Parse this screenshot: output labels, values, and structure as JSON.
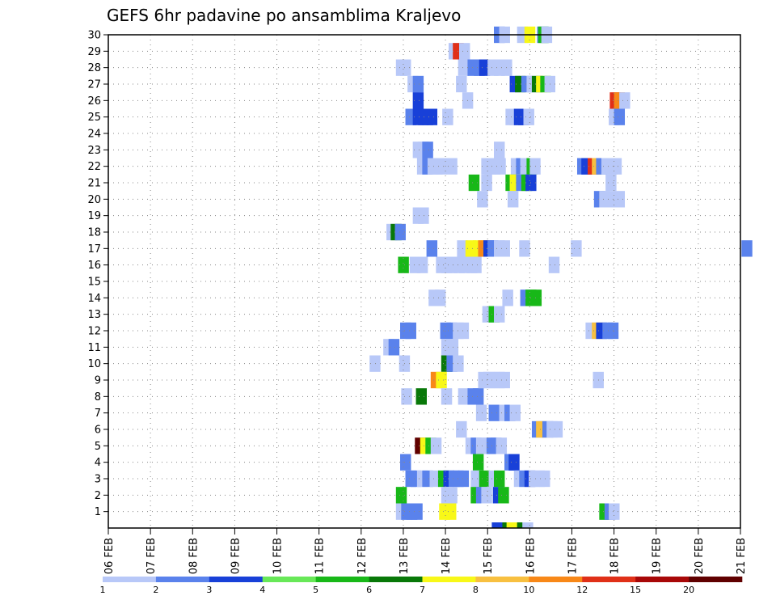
{
  "chart_data": {
    "type": "heatmap",
    "title": "GEFS 6hr padavine po ansamblima Kraljevo",
    "xlabel": "",
    "ylabel": "",
    "x_ticks": [
      "06 FEB",
      "07 FEB",
      "08 FEB",
      "09 FEB",
      "10 FEB",
      "11 FEB",
      "12 FEB",
      "13 FEB",
      "14 FEB",
      "15 FEB",
      "16 FEB",
      "17 FEB",
      "18 FEB",
      "19 FEB",
      "20 FEB",
      "21 FEB"
    ],
    "xlim": [
      "06 FEB 00Z",
      "21 FEB 00Z"
    ],
    "x_step_hours": 6,
    "y_ticks": [
      1,
      2,
      3,
      4,
      5,
      6,
      7,
      8,
      9,
      10,
      11,
      12,
      13,
      14,
      15,
      16,
      17,
      18,
      19,
      20,
      21,
      22,
      23,
      24,
      25,
      26,
      27,
      28,
      29,
      30
    ],
    "ylim": [
      0,
      30
    ],
    "grid": true,
    "colorbar": {
      "labels": [
        "1",
        "2",
        "3",
        "4",
        "5",
        "6",
        "7",
        "8",
        "10",
        "12",
        "15",
        "20"
      ],
      "colors": [
        "#b8c8f8",
        "#5a82ec",
        "#1840d8",
        "#68e858",
        "#18b818",
        "#087808",
        "#f8f818",
        "#f8c040",
        "#f88818",
        "#e03018",
        "#a80808",
        "#600000"
      ]
    },
    "cells": [
      {
        "m": 30,
        "x": [
          [
            36.6,
            1
          ],
          [
            37.1,
            0
          ],
          [
            38.8,
            0
          ],
          [
            39.5,
            6
          ],
          [
            40.7,
            1
          ],
          [
            40.8,
            4
          ],
          [
            41.1,
            0
          ]
        ]
      },
      {
        "m": 29,
        "x": [
          [
            32.3,
            0
          ],
          [
            32.7,
            9
          ],
          [
            33.3,
            0
          ]
        ]
      },
      {
        "m": 28,
        "x": [
          [
            27.3,
            0
          ],
          [
            27.7,
            0
          ],
          [
            33.2,
            0
          ],
          [
            34.1,
            1
          ],
          [
            34.7,
            1
          ],
          [
            35.2,
            2
          ],
          [
            36.0,
            0
          ],
          [
            36.6,
            0
          ],
          [
            37.3,
            0
          ]
        ]
      },
      {
        "m": 27,
        "x": [
          [
            28.4,
            0
          ],
          [
            28.9,
            1
          ],
          [
            33.0,
            0
          ],
          [
            38.1,
            2
          ],
          [
            38.6,
            5
          ],
          [
            39.2,
            1
          ],
          [
            39.7,
            0
          ],
          [
            40.2,
            5
          ],
          [
            40.6,
            6
          ],
          [
            41.0,
            4
          ],
          [
            41.4,
            0
          ]
        ]
      },
      {
        "m": 26,
        "x": [
          [
            28.9,
            2
          ],
          [
            33.6,
            0
          ],
          [
            47.6,
            9
          ],
          [
            48.0,
            8
          ],
          [
            48.5,
            0
          ]
        ]
      },
      {
        "m": 25,
        "x": [
          [
            28.2,
            1
          ],
          [
            28.9,
            2
          ],
          [
            29.4,
            2
          ],
          [
            29.8,
            2
          ],
          [
            30.2,
            2
          ],
          [
            31.7,
            0
          ],
          [
            37.7,
            0
          ],
          [
            38.1,
            0
          ],
          [
            38.5,
            2
          ],
          [
            38.9,
            2
          ],
          [
            39.4,
            0
          ],
          [
            47.5,
            0
          ],
          [
            48.0,
            1
          ]
        ]
      },
      {
        "m": 23,
        "x": [
          [
            28.9,
            0
          ],
          [
            29.4,
            0
          ],
          [
            29.8,
            1
          ],
          [
            36.6,
            0
          ]
        ]
      },
      {
        "m": 22,
        "x": [
          [
            29.3,
            0
          ],
          [
            29.8,
            1
          ],
          [
            30.3,
            0
          ],
          [
            30.7,
            0
          ],
          [
            31.1,
            0
          ],
          [
            32.1,
            0
          ],
          [
            35.4,
            0
          ],
          [
            35.7,
            0
          ],
          [
            36.2,
            0
          ],
          [
            36.7,
            0
          ],
          [
            38.2,
            0
          ],
          [
            38.7,
            1
          ],
          [
            39.1,
            0
          ],
          [
            39.7,
            4
          ],
          [
            40.0,
            0
          ],
          [
            44.5,
            1
          ],
          [
            44.9,
            2
          ],
          [
            45.5,
            9
          ],
          [
            45.9,
            7
          ],
          [
            46.3,
            1
          ],
          [
            46.8,
            0
          ],
          [
            47.3,
            0
          ],
          [
            47.7,
            0
          ]
        ]
      },
      {
        "m": 21,
        "x": [
          [
            34.2,
            4
          ],
          [
            35.4,
            0
          ],
          [
            37.7,
            4
          ],
          [
            38.1,
            6
          ],
          [
            38.7,
            1
          ],
          [
            39.2,
            4
          ],
          [
            39.6,
            2
          ],
          [
            47.2,
            0
          ]
        ]
      },
      {
        "m": 20,
        "x": [
          [
            35.0,
            0
          ],
          [
            37.9,
            0
          ],
          [
            46.1,
            1
          ],
          [
            46.6,
            0
          ],
          [
            47.1,
            0
          ],
          [
            48.0,
            0
          ]
        ]
      },
      {
        "m": 19,
        "x": [
          [
            28.9,
            0
          ],
          [
            29.4,
            0
          ]
        ]
      },
      {
        "m": 18,
        "x": [
          [
            26.4,
            0
          ],
          [
            26.8,
            5
          ],
          [
            27.2,
            1
          ]
        ]
      },
      {
        "m": 17,
        "x": [
          [
            30.2,
            1
          ],
          [
            33.1,
            0
          ],
          [
            33.9,
            6
          ],
          [
            34.6,
            6
          ],
          [
            35.1,
            8
          ],
          [
            35.6,
            2
          ],
          [
            36.0,
            1
          ],
          [
            36.6,
            0
          ],
          [
            37.1,
            0
          ],
          [
            39.0,
            0
          ],
          [
            43.9,
            0
          ],
          [
            60.1,
            1
          ]
        ]
      },
      {
        "m": 16,
        "x": [
          [
            27.5,
            4
          ],
          [
            28.6,
            0
          ],
          [
            29.3,
            0
          ],
          [
            31.1,
            0
          ],
          [
            31.6,
            0
          ],
          [
            32.1,
            0
          ],
          [
            32.8,
            0
          ],
          [
            33.3,
            0
          ],
          [
            34.0,
            0
          ],
          [
            34.4,
            0
          ],
          [
            41.8,
            0
          ]
        ]
      },
      {
        "m": 14,
        "x": [
          [
            30.4,
            0
          ],
          [
            31.0,
            0
          ],
          [
            37.4,
            0
          ],
          [
            39.1,
            1
          ],
          [
            39.6,
            4
          ],
          [
            40.1,
            4
          ]
        ]
      },
      {
        "m": 13,
        "x": [
          [
            35.5,
            0
          ],
          [
            36.1,
            4
          ],
          [
            36.6,
            0
          ]
        ]
      },
      {
        "m": 12,
        "x": [
          [
            27.7,
            1
          ],
          [
            28.2,
            1
          ],
          [
            31.5,
            1
          ],
          [
            32.1,
            1
          ],
          [
            32.7,
            0
          ],
          [
            33.2,
            0
          ],
          [
            45.3,
            0
          ],
          [
            45.9,
            7
          ],
          [
            46.3,
            2
          ],
          [
            46.9,
            1
          ],
          [
            47.4,
            1
          ]
        ]
      },
      {
        "m": 11,
        "x": [
          [
            26.1,
            0
          ],
          [
            26.6,
            1
          ],
          [
            31.6,
            0
          ],
          [
            32.2,
            0
          ]
        ]
      },
      {
        "m": 10,
        "x": [
          [
            24.8,
            0
          ],
          [
            27.6,
            0
          ],
          [
            31.6,
            5
          ],
          [
            32.1,
            1
          ],
          [
            32.7,
            0
          ]
        ]
      },
      {
        "m": 9,
        "x": [
          [
            30.6,
            8
          ],
          [
            31.1,
            6
          ],
          [
            35.1,
            0
          ],
          [
            35.6,
            0
          ],
          [
            36.1,
            0
          ],
          [
            36.6,
            0
          ],
          [
            37.1,
            0
          ],
          [
            46.0,
            0
          ]
        ]
      },
      {
        "m": 8,
        "x": [
          [
            27.8,
            0
          ],
          [
            29.2,
            5
          ],
          [
            31.6,
            0
          ],
          [
            33.2,
            0
          ],
          [
            34.1,
            1
          ],
          [
            34.6,
            1
          ]
        ]
      },
      {
        "m": 7,
        "x": [
          [
            34.9,
            0
          ],
          [
            36.1,
            1
          ],
          [
            37.1,
            0
          ],
          [
            37.6,
            1
          ],
          [
            38.1,
            0
          ]
        ]
      },
      {
        "m": 6,
        "x": [
          [
            33.0,
            0
          ],
          [
            40.2,
            1
          ],
          [
            40.6,
            7
          ],
          [
            41.2,
            1
          ],
          [
            41.6,
            0
          ],
          [
            42.1,
            0
          ]
        ]
      },
      {
        "m": 5,
        "x": [
          [
            29.1,
            11
          ],
          [
            29.6,
            6
          ],
          [
            30.1,
            4
          ],
          [
            30.6,
            0
          ],
          [
            33.9,
            0
          ],
          [
            34.4,
            1
          ],
          [
            34.9,
            0
          ],
          [
            35.4,
            0
          ],
          [
            35.9,
            1
          ],
          [
            36.3,
            1
          ],
          [
            36.8,
            0
          ]
        ]
      },
      {
        "m": 4,
        "x": [
          [
            27.7,
            1
          ],
          [
            34.6,
            4
          ],
          [
            37.6,
            1
          ],
          [
            38.0,
            2
          ]
        ]
      },
      {
        "m": 3,
        "x": [
          [
            28.2,
            1
          ],
          [
            28.7,
            1
          ],
          [
            29.3,
            0
          ],
          [
            29.8,
            1
          ],
          [
            30.5,
            0
          ],
          [
            31.3,
            4
          ],
          [
            31.8,
            2
          ],
          [
            32.3,
            1
          ],
          [
            32.7,
            1
          ],
          [
            33.2,
            1
          ],
          [
            34.4,
            0
          ],
          [
            35.2,
            4
          ],
          [
            36.1,
            0
          ],
          [
            36.6,
            4
          ],
          [
            38.5,
            0
          ],
          [
            39.0,
            1
          ],
          [
            39.5,
            2
          ],
          [
            39.9,
            0
          ],
          [
            40.4,
            0
          ],
          [
            40.9,
            0
          ]
        ]
      },
      {
        "m": 2,
        "x": [
          [
            27.3,
            4
          ],
          [
            31.6,
            0
          ],
          [
            32.1,
            0
          ],
          [
            34.4,
            4
          ],
          [
            34.9,
            1
          ],
          [
            35.4,
            0
          ],
          [
            36.5,
            2
          ],
          [
            37.0,
            4
          ]
        ]
      },
      {
        "m": 1,
        "x": [
          [
            27.3,
            0
          ],
          [
            27.8,
            1
          ],
          [
            28.3,
            1
          ],
          [
            28.8,
            1
          ],
          [
            31.4,
            6
          ],
          [
            32.0,
            6
          ],
          [
            46.6,
            4
          ],
          [
            47.1,
            1
          ],
          [
            47.5,
            0
          ]
        ]
      },
      {
        "m": 0,
        "x": [
          [
            36.4,
            2
          ],
          [
            36.9,
            2
          ],
          [
            37.4,
            5
          ],
          [
            37.8,
            6
          ],
          [
            38.3,
            6
          ],
          [
            38.8,
            5
          ],
          [
            39.3,
            0
          ]
        ]
      }
    ]
  }
}
